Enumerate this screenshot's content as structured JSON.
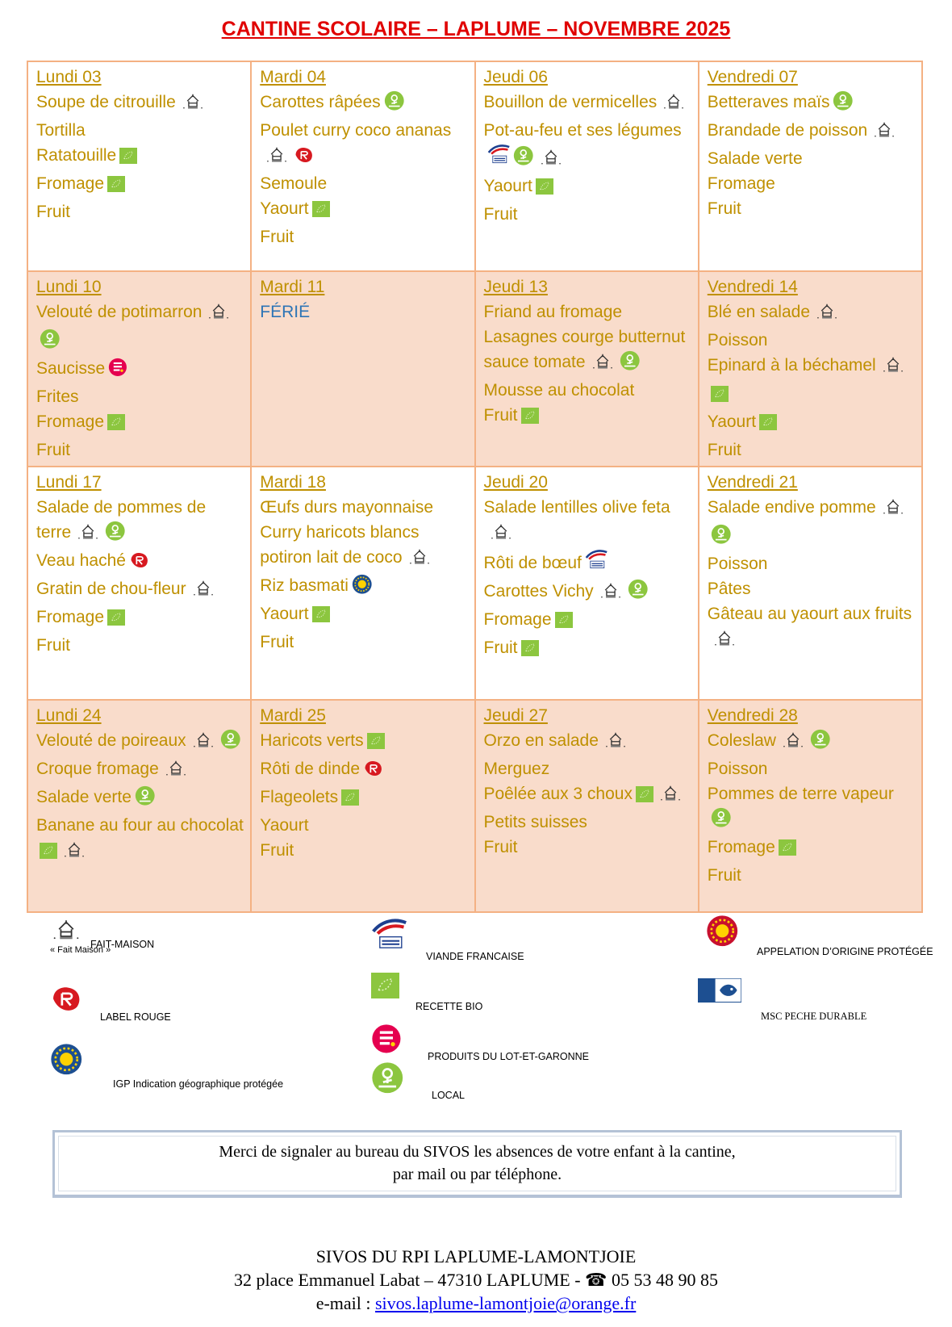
{
  "title": "CANTINE SCOLAIRE – LAPLUME –  NOVEMBRE 2025",
  "weeks": [
    {
      "days": [
        {
          "day": "Lundi 03",
          "items": [
            {
              "text": "Soupe de citrouille",
              "icons": [
                "fm"
              ]
            },
            {
              "text": "Tortilla",
              "icons": []
            },
            {
              "text": "Ratatouille",
              "icons": [
                "bio"
              ]
            },
            {
              "text": "Fromage",
              "icons": [
                "bio"
              ]
            },
            {
              "text": "Fruit",
              "icons": []
            }
          ]
        },
        {
          "day": "Mardi 04",
          "items": [
            {
              "text": "Carottes râpées",
              "icons": [
                "local"
              ]
            },
            {
              "text": "Poulet curry coco ananas",
              "icons": [
                "fm",
                "lr"
              ]
            },
            {
              "text": "Semoule",
              "icons": []
            },
            {
              "text": "Yaourt",
              "icons": [
                "bio"
              ]
            },
            {
              "text": "Fruit",
              "icons": []
            }
          ]
        },
        {
          "day": "Jeudi 06",
          "items": [
            {
              "text": "Bouillon de vermicelles",
              "icons": [
                "fm"
              ]
            },
            {
              "text": "Pot-au-feu et ses légumes",
              "icons": [
                "vf",
                "local",
                "fm"
              ]
            },
            {
              "text": "Yaourt",
              "icons": [
                "bio"
              ]
            },
            {
              "text": "Fruit",
              "icons": []
            }
          ]
        },
        {
          "day": "Vendredi 07",
          "items": [
            {
              "text": "Betteraves maïs",
              "icons": [
                "local"
              ]
            },
            {
              "text": "Brandade de poisson",
              "icons": [
                "fm"
              ]
            },
            {
              "text": "Salade verte",
              "icons": []
            },
            {
              "text": "Fromage",
              "icons": []
            },
            {
              "text": "Fruit",
              "icons": []
            }
          ]
        }
      ]
    },
    {
      "days": [
        {
          "day": "Lundi 10",
          "items": [
            {
              "text": "Velouté de potimarron",
              "icons": [
                "fm",
                "local"
              ]
            },
            {
              "text": "Saucisse",
              "icons": [
                "lot"
              ]
            },
            {
              "text": "Frites",
              "icons": []
            },
            {
              "text": "Fromage",
              "icons": [
                "bio"
              ]
            },
            {
              "text": "Fruit",
              "icons": []
            }
          ]
        },
        {
          "day": "Mardi 11",
          "holiday": "FÉRIÉ",
          "items": []
        },
        {
          "day": "Jeudi 13",
          "items": [
            {
              "text": "Friand au fromage",
              "icons": []
            },
            {
              "text": "Lasagnes courge butternut sauce tomate",
              "icons": [
                "fm",
                "local"
              ]
            },
            {
              "text": "Mousse au chocolat",
              "icons": []
            },
            {
              "text": "Fruit",
              "icons": [
                "bio"
              ]
            }
          ]
        },
        {
          "day": "Vendredi 14",
          "items": [
            {
              "text": "Blé en salade",
              "icons": [
                "fm"
              ]
            },
            {
              "text": "Poisson",
              "icons": []
            },
            {
              "text": "Epinard à la béchamel",
              "icons": [
                "fm",
                "bio"
              ]
            },
            {
              "text": "Yaourt",
              "icons": [
                "bio"
              ]
            },
            {
              "text": "Fruit",
              "icons": []
            }
          ]
        }
      ]
    },
    {
      "days": [
        {
          "day": "Lundi 17",
          "items": [
            {
              "text": "Salade de pommes de terre",
              "icons": [
                "fm",
                "local"
              ]
            },
            {
              "text": "Veau haché",
              "icons": [
                "lr"
              ]
            },
            {
              "text": "Gratin de chou-fleur",
              "icons": [
                "fm"
              ]
            },
            {
              "text": "Fromage",
              "icons": [
                "bio"
              ]
            },
            {
              "text": "Fruit",
              "icons": []
            }
          ]
        },
        {
          "day": "Mardi 18",
          "items": [
            {
              "text": "Œufs durs mayonnaise",
              "icons": []
            },
            {
              "text": "Curry haricots blancs potiron lait de coco",
              "icons": [
                "fm"
              ]
            },
            {
              "text": "Riz basmati",
              "icons": [
                "igp"
              ]
            },
            {
              "text": "Yaourt",
              "icons": [
                "bio"
              ]
            },
            {
              "text": "Fruit",
              "icons": []
            }
          ]
        },
        {
          "day": "Jeudi 20",
          "items": [
            {
              "text": "Salade lentilles olive feta",
              "icons": [
                "fm"
              ]
            },
            {
              "text": "Rôti de bœuf",
              "icons": [
                "vf"
              ]
            },
            {
              "text": "Carottes Vichy",
              "icons": [
                "fm",
                "local"
              ]
            },
            {
              "text": "Fromage",
              "icons": [
                "bio"
              ]
            },
            {
              "text": "Fruit",
              "icons": [
                "bio"
              ]
            }
          ]
        },
        {
          "day": "Vendredi 21",
          "items": [
            {
              "text": "Salade endive pomme",
              "icons": [
                "fm",
                "local"
              ]
            },
            {
              "text": "Poisson",
              "icons": []
            },
            {
              "text": "Pâtes",
              "icons": []
            },
            {
              "text": "Gâteau au yaourt aux fruits",
              "icons": [
                "fm"
              ]
            }
          ]
        }
      ]
    },
    {
      "days": [
        {
          "day": "Lundi 24",
          "items": [
            {
              "text": "Velouté de poireaux",
              "icons": [
                "fm",
                "local"
              ]
            },
            {
              "text": "Croque fromage",
              "icons": [
                "fm"
              ]
            },
            {
              "text": "Salade verte",
              "icons": [
                "local"
              ]
            },
            {
              "text": "Banane au four au chocolat",
              "icons": [
                "bio",
                "fm"
              ]
            }
          ]
        },
        {
          "day": "Mardi 25",
          "items": [
            {
              "text": "Haricots verts",
              "icons": [
                "bio"
              ]
            },
            {
              "text": "Rôti de dinde",
              "icons": [
                "lr"
              ]
            },
            {
              "text": "Flageolets",
              "icons": [
                "bio"
              ]
            },
            {
              "text": "Yaourt",
              "icons": []
            },
            {
              "text": "Fruit",
              "icons": []
            }
          ]
        },
        {
          "day": "Jeudi 27",
          "items": [
            {
              "text": "Orzo en salade",
              "icons": [
                "fm"
              ]
            },
            {
              "text": "Merguez",
              "icons": []
            },
            {
              "text": "Poêlée aux 3 choux",
              "icons": [
                "bio",
                "fm"
              ]
            },
            {
              "text": "Petits suisses",
              "icons": []
            },
            {
              "text": "Fruit",
              "icons": []
            }
          ]
        },
        {
          "day": "Vendredi 28",
          "items": [
            {
              "text": "Coleslaw",
              "icons": [
                "fm",
                "local"
              ]
            },
            {
              "text": "Poisson",
              "icons": []
            },
            {
              "text": "Pommes de terre vapeur",
              "icons": [
                "local"
              ]
            },
            {
              "text": "Fromage",
              "icons": [
                "bio"
              ]
            },
            {
              "text": "Fruit",
              "icons": []
            }
          ]
        }
      ]
    }
  ],
  "legend": [
    {
      "icon": "fm",
      "icon_caption": "« Fait Maison »",
      "label": "FAIT-MAISON"
    },
    {
      "icon": "lr",
      "label": "LABEL ROUGE"
    },
    {
      "icon": "igp",
      "label": "IGP Indication géographique protégée"
    },
    {
      "icon": "vf",
      "label": "VIANDE FRANCAISE"
    },
    {
      "icon": "bio",
      "label": "RECETTE BIO"
    },
    {
      "icon": "lot",
      "label": "PRODUITS DU LOT-ET-GARONNE"
    },
    {
      "icon": "local",
      "label": "LOCAL"
    },
    {
      "icon": "aop",
      "label": "APPELATION D’ORIGINE PROTÉGÉE"
    },
    {
      "icon": "msc",
      "label": "MSC PECHE DURABLE"
    }
  ],
  "notice": [
    "Merci de signaler au bureau du SIVOS les absences de votre enfant à la cantine,",
    "par mail ou par téléphone."
  ],
  "footer": {
    "org": "SIVOS DU RPI LAPLUME-LAMONTJOIE",
    "address": "32 place Emmanuel Labat – 47310 LAPLUME - ",
    "phone_icon": "☎",
    "phone": " 05 53 48 90 85",
    "email_label": "e-mail :  ",
    "email": "sivos.laplume-lamontjoie@orange.fr"
  }
}
